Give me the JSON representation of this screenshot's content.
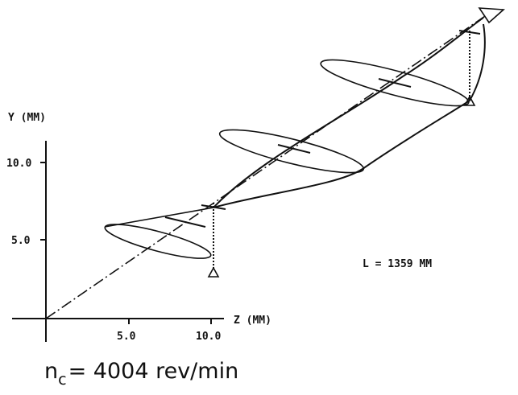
{
  "axes": {
    "y_label": "Y (MM)",
    "z_label": "Z (MM)",
    "y_ticks": [
      "5.0",
      "10.0"
    ],
    "z_ticks": [
      "5.0",
      "10.0"
    ]
  },
  "annotation": "L = 1359 MM",
  "speed": {
    "symbol": "n",
    "subscript": "c",
    "rest": "= 4004 rev/min"
  }
}
